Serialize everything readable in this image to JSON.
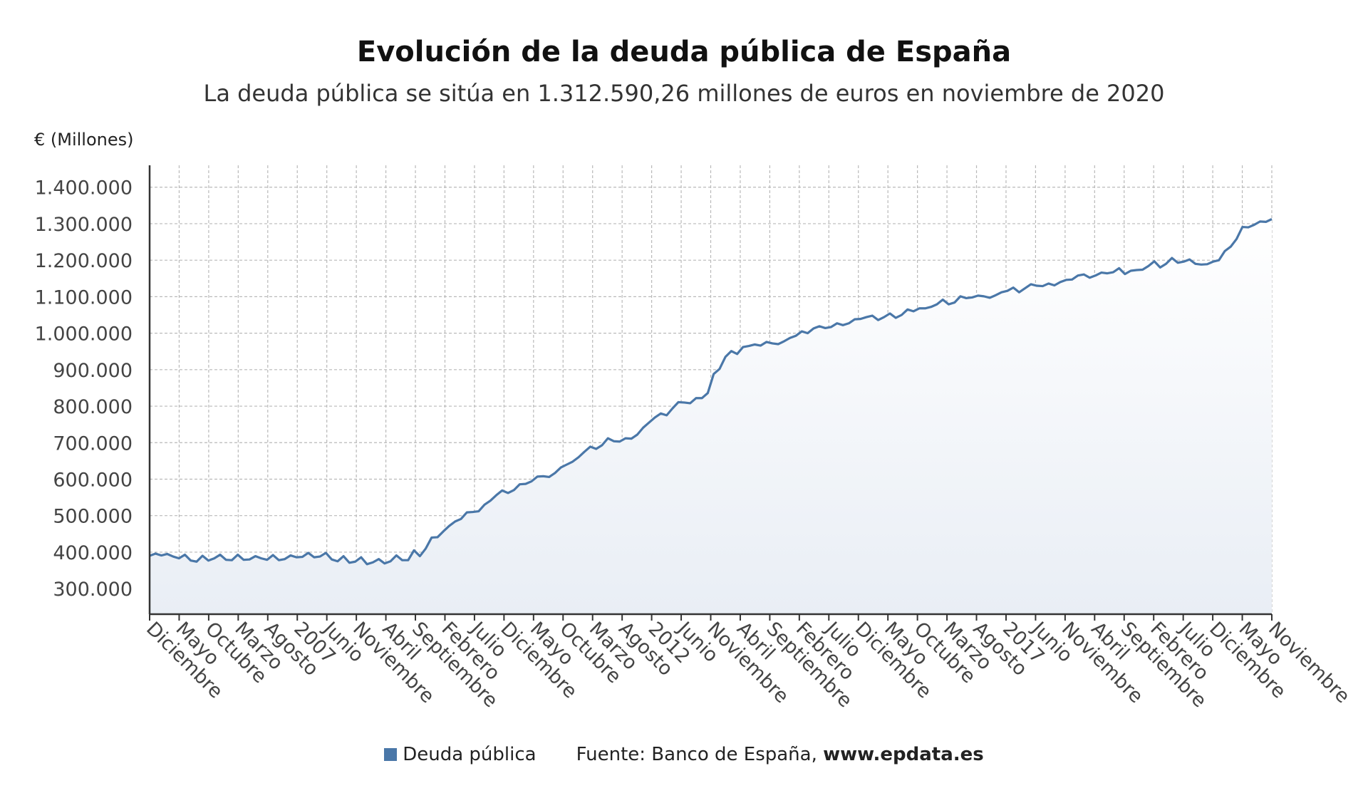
{
  "chart_data": {
    "type": "area",
    "title": "Evolución de la deuda pública de España",
    "subtitle": "La deuda pública se sitúa en 1.312.590,26 millones de euros en noviembre de 2020",
    "ylabel": "€ (Millones)",
    "xlabel": "",
    "ylim": [
      230000,
      1460000
    ],
    "yticks": [
      300000,
      400000,
      500000,
      600000,
      700000,
      800000,
      900000,
      1000000,
      1100000,
      1200000,
      1300000,
      1400000
    ],
    "ytick_labels": [
      "300.000",
      "400.000",
      "500.000",
      "600.000",
      "700.000",
      "800.000",
      "900.000",
      "1.000.000",
      "1.100.000",
      "1.200.000",
      "1.300.000",
      "1.400.000"
    ],
    "xtick_labels": [
      "Diciembre",
      "Mayo",
      "Octubre",
      "Marzo",
      "Agosto",
      "2007",
      "Junio",
      "Noviembre",
      "Abril",
      "Septiembre",
      "Febrero",
      "Julio",
      "Diciembre",
      "Mayo",
      "Octubre",
      "Marzo",
      "Agosto",
      "2012",
      "Junio",
      "Noviembre",
      "Abril",
      "Septiembre",
      "Febrero",
      "Julio",
      "Diciembre",
      "Mayo",
      "Octubre",
      "Marzo",
      "Agosto",
      "2017",
      "Junio",
      "Noviembre",
      "Abril",
      "Septiembre",
      "Febrero",
      "Julio",
      "Diciembre",
      "Mayo",
      "Noviembre"
    ],
    "grid": true,
    "legend_position": "bottom",
    "series": [
      {
        "name": "Deuda pública",
        "color": "#4a77a8",
        "fill": "#e9eef5",
        "values": [
          390000,
          396000,
          391000,
          395000,
          388000,
          383000,
          393000,
          377000,
          374000,
          390000,
          377000,
          383000,
          393000,
          379000,
          378000,
          393000,
          379000,
          380000,
          389000,
          383000,
          379000,
          392000,
          378000,
          381000,
          391000,
          386000,
          387000,
          398000,
          386000,
          388000,
          398000,
          380000,
          375000,
          389000,
          371000,
          374000,
          386000,
          367000,
          372000,
          381000,
          369000,
          375000,
          391000,
          378000,
          378000,
          405000,
          389000,
          410000,
          440000,
          441000,
          457000,
          472000,
          484000,
          491000,
          509000,
          510000,
          512000,
          530000,
          541000,
          556000,
          569000,
          562000,
          570000,
          586000,
          587000,
          594000,
          607000,
          608000,
          606000,
          617000,
          632000,
          640000,
          648000,
          660000,
          675000,
          689000,
          683000,
          693000,
          712000,
          704000,
          703000,
          712000,
          711000,
          722000,
          741000,
          755000,
          769000,
          780000,
          775000,
          794000,
          811000,
          810000,
          808000,
          822000,
          822000,
          836000,
          888000,
          902000,
          935000,
          951000,
          943000,
          962000,
          965000,
          969000,
          966000,
          976000,
          972000,
          970000,
          978000,
          987000,
          993000,
          1005000,
          1000000,
          1013000,
          1019000,
          1014000,
          1017000,
          1027000,
          1022000,
          1027000,
          1038000,
          1039000,
          1044000,
          1048000,
          1036000,
          1044000,
          1054000,
          1042000,
          1050000,
          1065000,
          1060000,
          1068000,
          1068000,
          1072000,
          1079000,
          1092000,
          1079000,
          1084000,
          1101000,
          1096000,
          1098000,
          1103000,
          1101000,
          1097000,
          1104000,
          1112000,
          1116000,
          1125000,
          1112000,
          1123000,
          1134000,
          1130000,
          1129000,
          1136000,
          1131000,
          1140000,
          1146000,
          1147000,
          1158000,
          1161000,
          1152000,
          1158000,
          1166000,
          1164000,
          1167000,
          1178000,
          1162000,
          1171000,
          1173000,
          1174000,
          1184000,
          1197000,
          1180000,
          1190000,
          1206000,
          1193000,
          1196000,
          1202000,
          1190000,
          1188000,
          1189000,
          1196000,
          1200000,
          1225000,
          1237000,
          1258000,
          1291000,
          1290000,
          1297000,
          1306000,
          1305000,
          1312590
        ]
      }
    ],
    "footer_source_prefix": "Fuente: Banco de España, ",
    "footer_source_site": "www.epdata.es"
  }
}
